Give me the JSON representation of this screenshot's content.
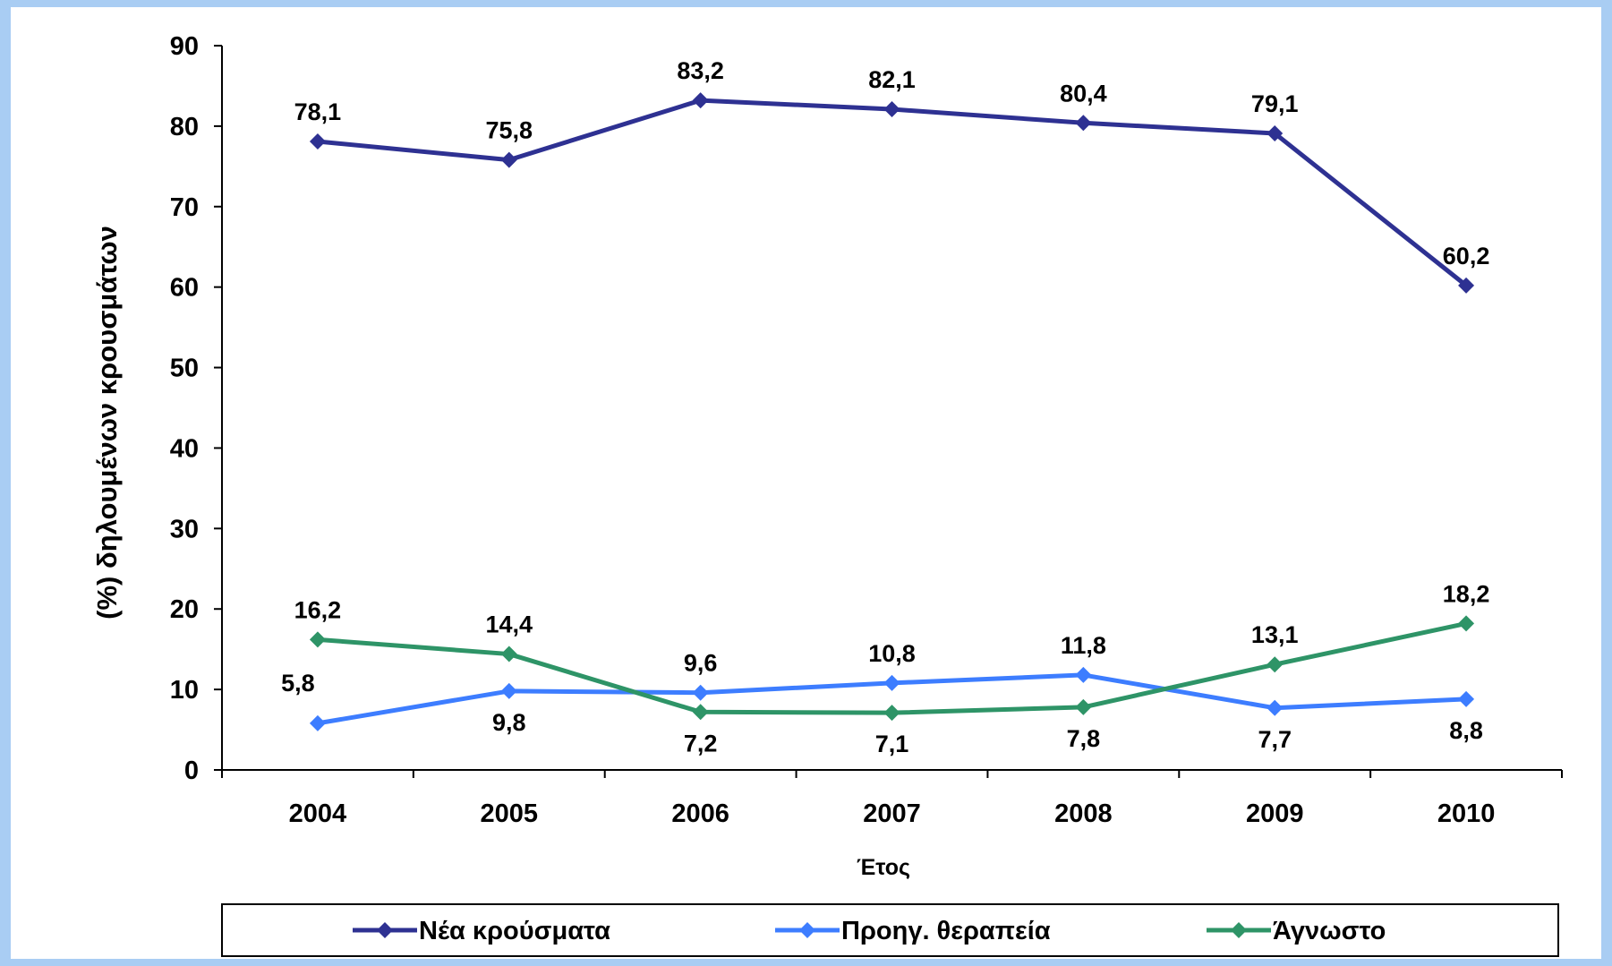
{
  "chart_data": {
    "type": "line",
    "categories": [
      "2004",
      "2005",
      "2006",
      "2007",
      "2008",
      "2009",
      "2010"
    ],
    "series": [
      {
        "name": "Νέα κρούσματα",
        "color": "#2e3192",
        "values": [
          78.1,
          75.8,
          83.2,
          82.1,
          80.4,
          79.1,
          60.2
        ],
        "labels": [
          "78,1",
          "75,8",
          "83,2",
          "82,1",
          "80,4",
          "79,1",
          "60,2"
        ]
      },
      {
        "name": "Προηγ. θεραπεία",
        "color": "#3d7dff",
        "values": [
          5.8,
          9.8,
          9.6,
          10.8,
          11.8,
          7.7,
          8.8
        ],
        "labels": [
          "5,8",
          "9,8",
          "9,6",
          "10,8",
          "11,8",
          "7,7",
          "8,8"
        ]
      },
      {
        "name": "Άγνωστο",
        "color": "#2e9467",
        "values": [
          16.2,
          14.4,
          7.2,
          7.1,
          7.8,
          13.1,
          18.2
        ],
        "labels": [
          "16,2",
          "14,4",
          "7,2",
          "7,1",
          "7,8",
          "13,1",
          "18,2"
        ]
      }
    ],
    "xlabel": "Έτος",
    "ylabel": "(%) δηλουμένων κρουσμάτων",
    "ylim": [
      0,
      90
    ],
    "yticks": [
      "0",
      "10",
      "20",
      "30",
      "40",
      "50",
      "60",
      "70",
      "80",
      "90"
    ],
    "grid": false,
    "legend_position": "bottom"
  }
}
